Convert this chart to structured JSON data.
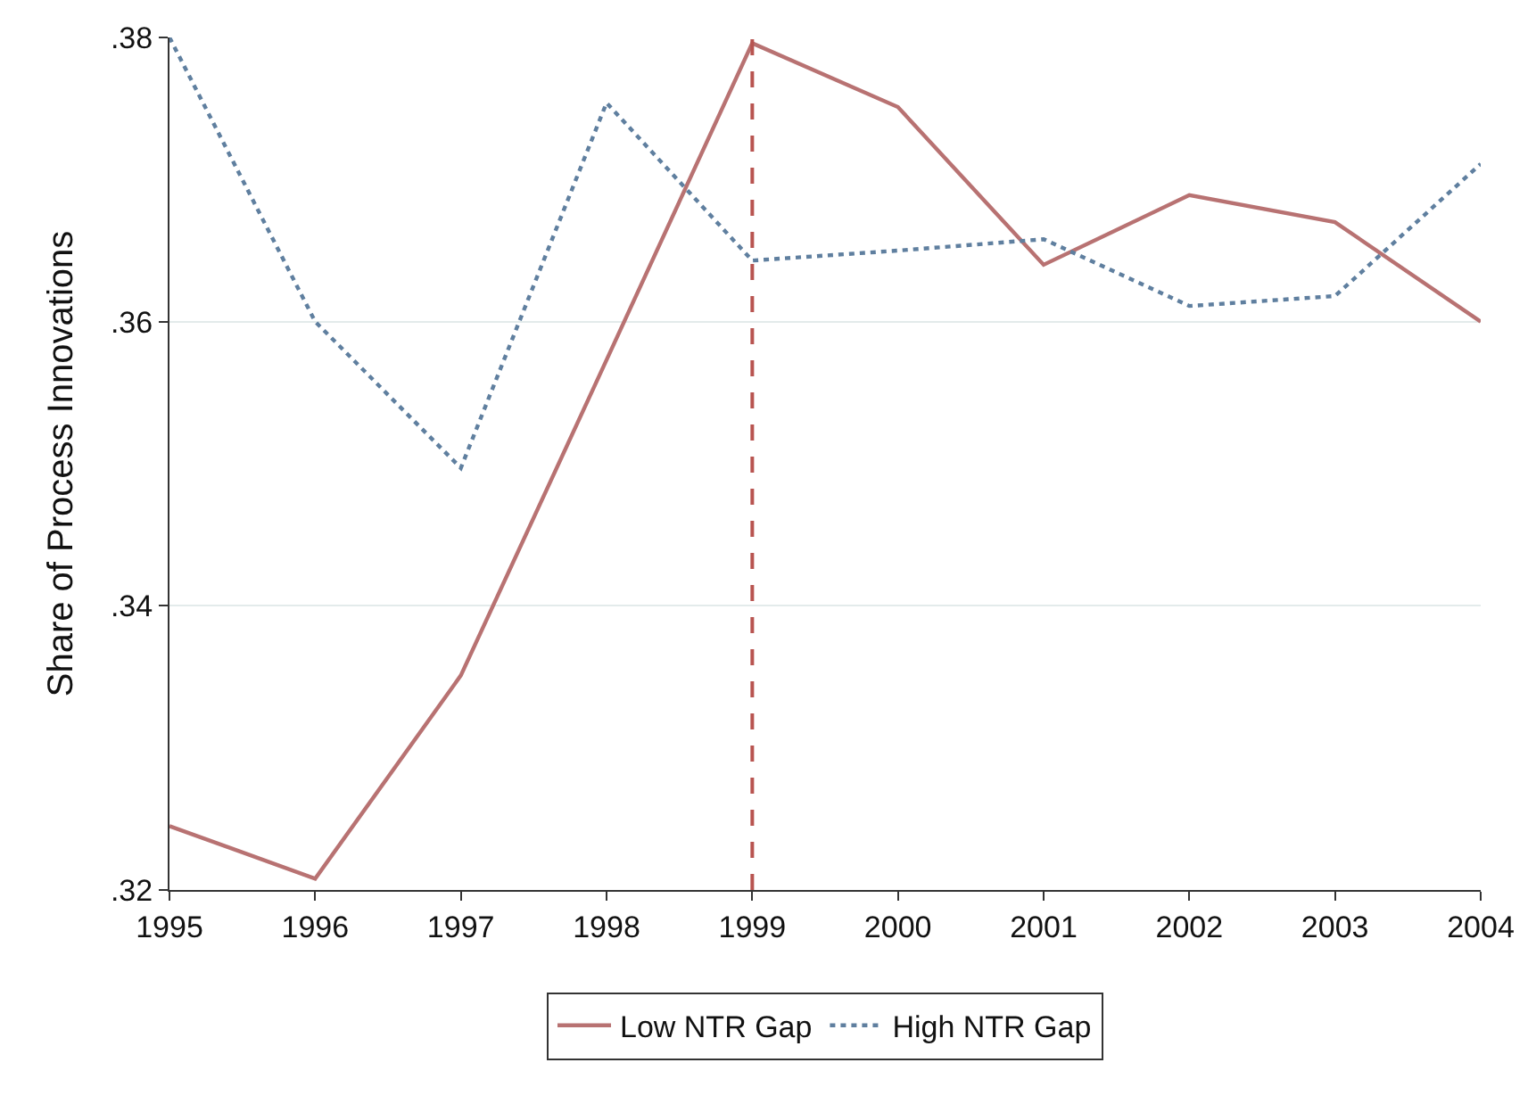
{
  "chart_data": {
    "type": "line",
    "ylabel": "Share of Process Innovations",
    "x": [
      1995,
      1996,
      1997,
      1998,
      1999,
      2000,
      2001,
      2002,
      2003,
      2004
    ],
    "series": [
      {
        "name": "Low NTR Gap",
        "color": "#b87272",
        "line_style": "solid",
        "values": [
          0.3245,
          0.3208,
          0.3351,
          0.3573,
          0.3796,
          0.3751,
          0.364,
          0.3689,
          0.367,
          0.36
        ]
      },
      {
        "name": "High NTR Gap",
        "color": "#5f7f9f",
        "line_style": "dotted",
        "values": [
          0.38,
          0.36,
          0.3497,
          0.3754,
          0.3643,
          0.365,
          0.3658,
          0.3611,
          0.3618,
          0.3711
        ]
      }
    ],
    "xlim": [
      1995,
      2004
    ],
    "xticks": [
      1995,
      1996,
      1997,
      1998,
      1999,
      2000,
      2001,
      2002,
      2003,
      2004
    ],
    "ylim": [
      0.32,
      0.38
    ],
    "yticks": [
      {
        "value": 0.32,
        "label": ".32"
      },
      {
        "value": 0.34,
        "label": ".34"
      },
      {
        "value": 0.36,
        "label": ".36"
      },
      {
        "value": 0.38,
        "label": ".38"
      }
    ],
    "ref_lines": [
      {
        "axis": "x",
        "value": 1999,
        "color": "#b85450",
        "line_style": "dashed"
      }
    ],
    "grid": "y",
    "legend": "bottom",
    "marker": "none"
  }
}
